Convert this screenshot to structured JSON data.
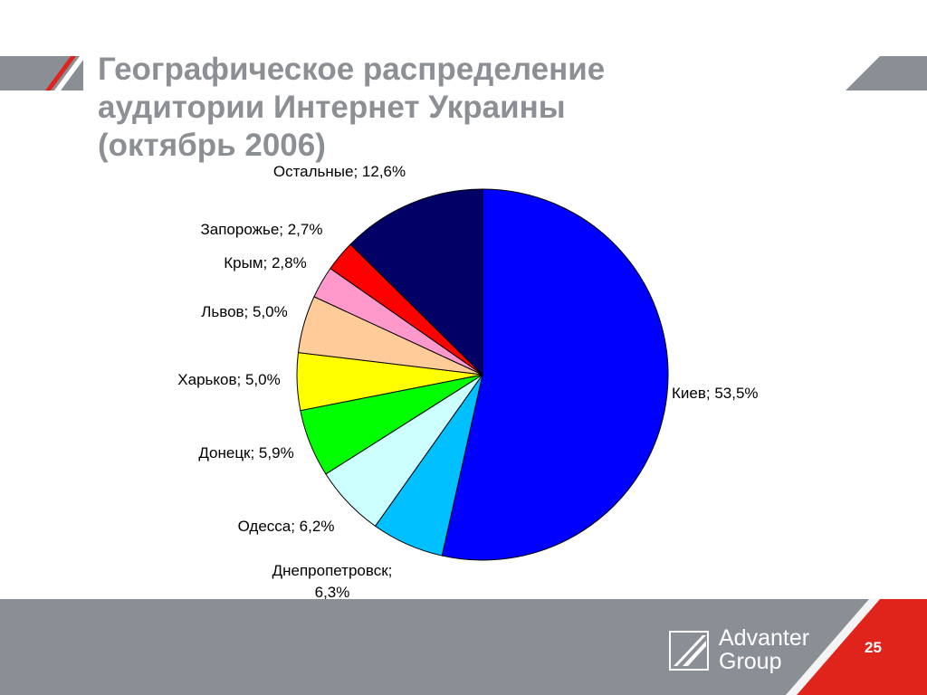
{
  "slide": {
    "title_lines": [
      "Географическое распределение",
      "аудитории Интернет Украины",
      "(октябрь 2006)"
    ],
    "logo_line1": "Advanter",
    "logo_line2": "Group",
    "page_number": "25"
  },
  "colors": {
    "grey": "#8a8f96",
    "red": "#e0231b",
    "title": "#8c9095"
  },
  "chart_data": {
    "type": "pie",
    "title": "",
    "label_format": "{name}; {value}%",
    "slices": [
      {
        "name": "Киев",
        "value": 53.5,
        "label": "Киев; 53,5%",
        "color": "#0000ff"
      },
      {
        "name": "Днепропетровск",
        "value": 6.3,
        "label": "Днепропетровск;|6,3%",
        "color": "#00c0ff"
      },
      {
        "name": "Одесса",
        "value": 6.2,
        "label": "Одесса; 6,2%",
        "color": "#ccffff"
      },
      {
        "name": "Донецк",
        "value": 5.9,
        "label": "Донецк; 5,9%",
        "color": "#00ff00"
      },
      {
        "name": "Харьков",
        "value": 5.0,
        "label": "Харьков; 5,0%",
        "color": "#ffff00"
      },
      {
        "name": "Львов",
        "value": 5.0,
        "label": "Львов; 5,0%",
        "color": "#ffcc99"
      },
      {
        "name": "Крым",
        "value": 2.8,
        "label": "Крым; 2,8%",
        "color": "#ff99cc"
      },
      {
        "name": "Запорожье",
        "value": 2.7,
        "label": "Запорожье; 2,7%",
        "color": "#ff0000"
      },
      {
        "name": "Остальные",
        "value": 12.6,
        "label": "Остальные; 12,6%",
        "color": "#000066"
      }
    ]
  }
}
